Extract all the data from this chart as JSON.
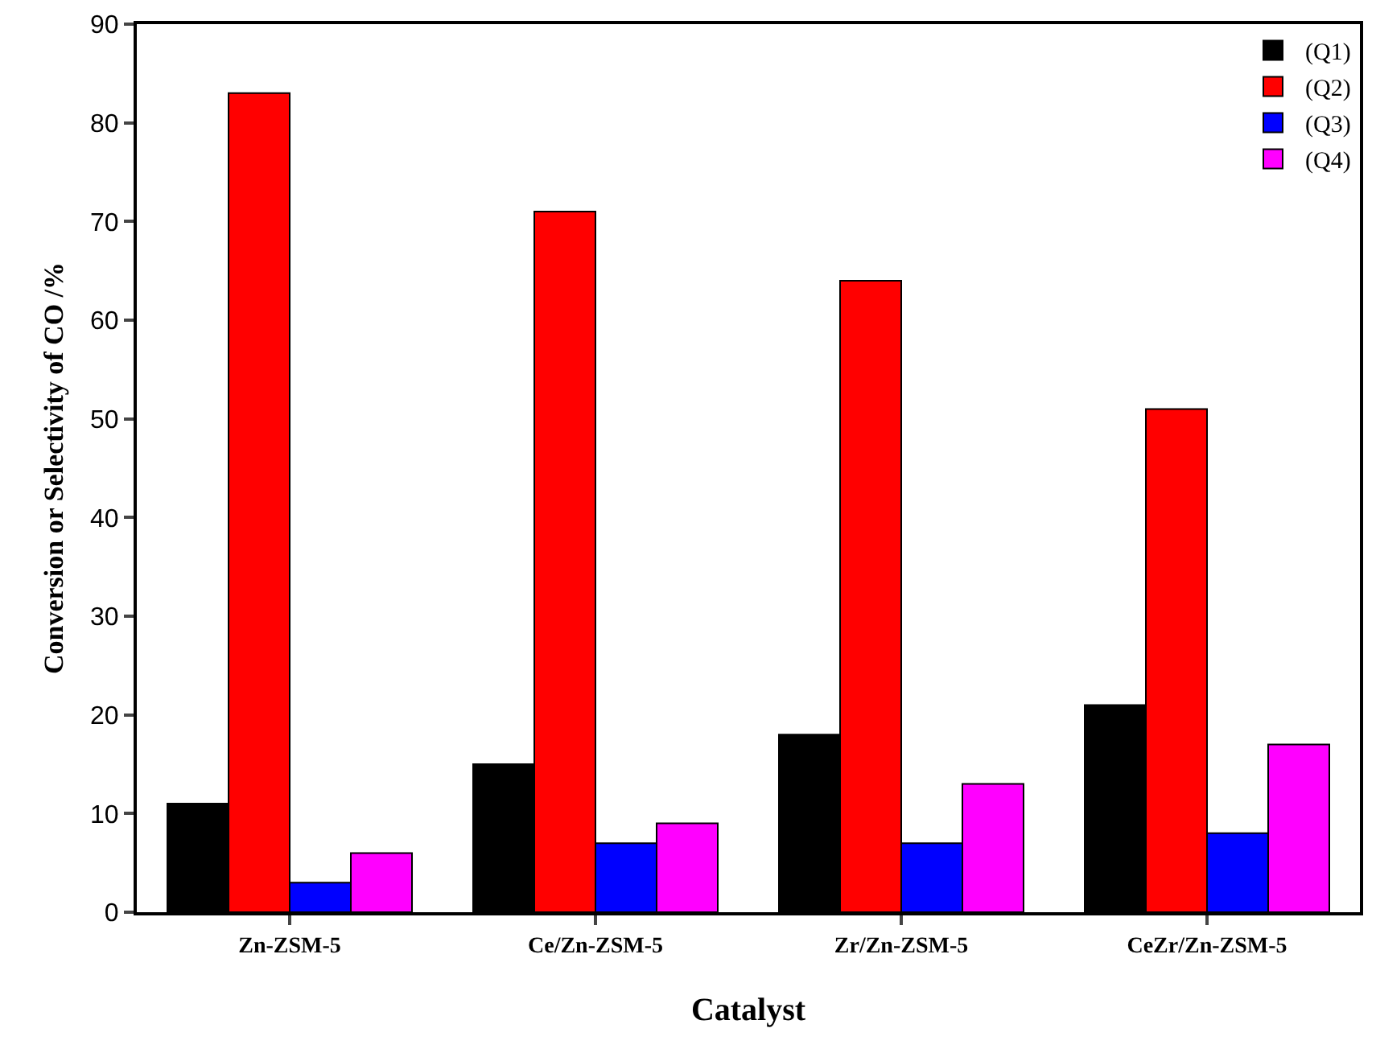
{
  "chart_data": {
    "type": "bar",
    "xlabel": "Catalyst",
    "ylabel": "Conversion or Selectivity of CO /%",
    "categories": [
      "Zn-ZSM-5",
      "Ce/Zn-ZSM-5",
      "Zr/Zn-ZSM-5",
      "CeZr/Zn-ZSM-5"
    ],
    "series": [
      {
        "name": "(Q1)",
        "color": "#000000",
        "values": [
          11,
          15,
          18,
          21
        ]
      },
      {
        "name": "(Q2)",
        "color": "#ff0000",
        "values": [
          83,
          71,
          64,
          51
        ]
      },
      {
        "name": "(Q3)",
        "color": "#0000ff",
        "values": [
          3,
          7,
          7,
          8
        ]
      },
      {
        "name": "(Q4)",
        "color": "#ff00ff",
        "values": [
          6,
          9,
          13,
          17
        ]
      }
    ],
    "ylim": [
      0,
      90
    ],
    "yticks": [
      0,
      10,
      20,
      30,
      40,
      50,
      60,
      70,
      80,
      90
    ],
    "grid": false,
    "legend": "top right"
  }
}
